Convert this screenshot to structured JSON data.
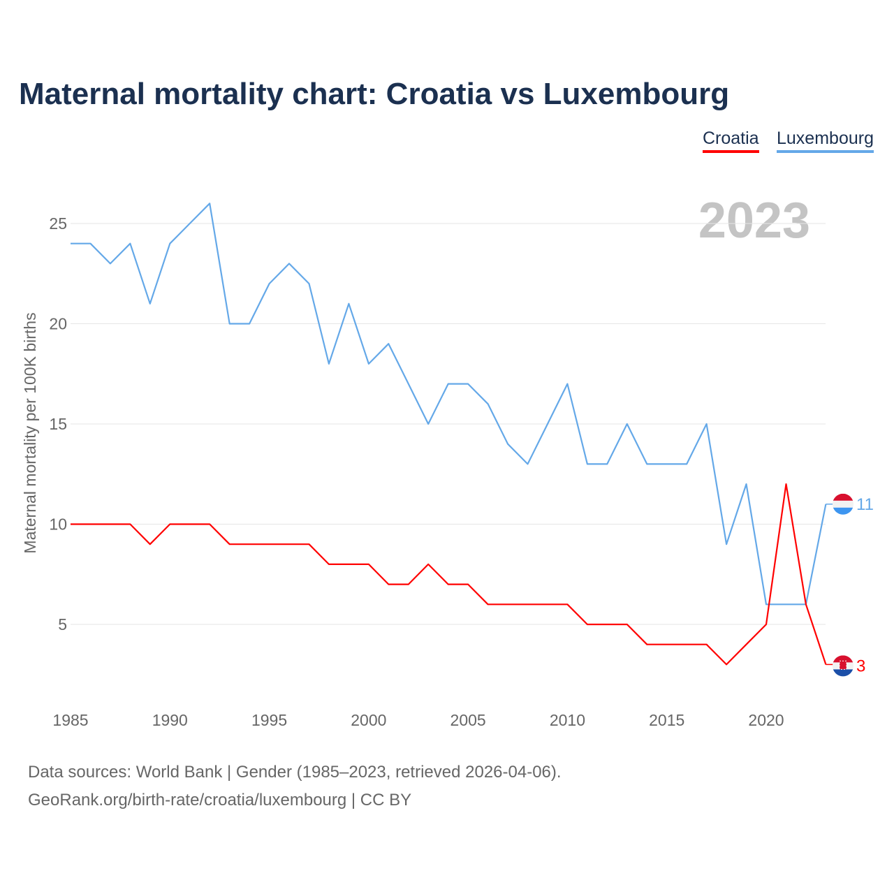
{
  "chart_data": {
    "type": "line",
    "title": "Maternal mortality chart: Croatia vs Luxembourg",
    "ylabel": "Maternal mortality per 100K births",
    "xlabel": "",
    "year_label": "2023",
    "x": [
      1985,
      1986,
      1987,
      1988,
      1989,
      1990,
      1991,
      1992,
      1993,
      1994,
      1995,
      1996,
      1997,
      1998,
      1999,
      2000,
      2001,
      2002,
      2003,
      2004,
      2005,
      2006,
      2007,
      2008,
      2009,
      2010,
      2011,
      2012,
      2013,
      2014,
      2015,
      2016,
      2017,
      2018,
      2019,
      2020,
      2021,
      2022,
      2023
    ],
    "xlim": [
      1985,
      2023
    ],
    "ylim": [
      1.5,
      27
    ],
    "xticks": [
      "1985",
      "1990",
      "1995",
      "2000",
      "2005",
      "2010",
      "2015",
      "2020"
    ],
    "yticks": [
      "5",
      "10",
      "15",
      "20",
      "25"
    ],
    "grid": true,
    "legend_position": "top-right",
    "series": [
      {
        "name": "Croatia",
        "color": "#ff0000",
        "end_label": "3",
        "flag": "croatia-flag",
        "values": [
          10,
          10,
          10,
          10,
          9,
          10,
          10,
          10,
          9,
          9,
          9,
          9,
          9,
          8,
          8,
          8,
          7,
          7,
          8,
          7,
          7,
          6,
          6,
          6,
          6,
          6,
          5,
          5,
          5,
          4,
          4,
          4,
          4,
          3,
          4,
          5,
          12,
          6,
          3
        ]
      },
      {
        "name": "Luxembourg",
        "color": "#64a8e8",
        "end_label": "11",
        "flag": "luxembourg-flag",
        "values": [
          24,
          24,
          23,
          24,
          21,
          24,
          25,
          26,
          20,
          20,
          22,
          23,
          22,
          18,
          21,
          18,
          19,
          17,
          15,
          17,
          17,
          16,
          14,
          13,
          15,
          17,
          13,
          13,
          15,
          13,
          13,
          13,
          15,
          9,
          12,
          6,
          6,
          6,
          11
        ]
      }
    ]
  },
  "footer": {
    "line1": "Data sources: World Bank | Gender (1985–2023, retrieved 2026-04-06).",
    "line2": "GeoRank.org/birth-rate/croatia/luxembourg | CC BY"
  }
}
